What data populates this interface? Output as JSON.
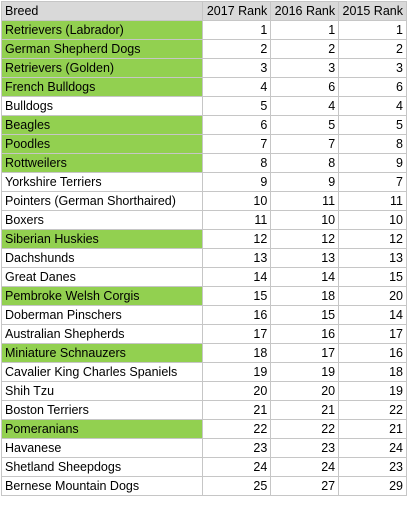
{
  "headers": [
    "Breed",
    "2017 Rank",
    "2016 Rank",
    "2015 Rank"
  ],
  "highlight_color": "#92d050",
  "rows": [
    {
      "breed": "Retrievers (Labrador)",
      "r2017": 1,
      "r2016": 1,
      "r2015": 1,
      "highlighted": true
    },
    {
      "breed": "German Shepherd Dogs",
      "r2017": 2,
      "r2016": 2,
      "r2015": 2,
      "highlighted": true
    },
    {
      "breed": "Retrievers (Golden)",
      "r2017": 3,
      "r2016": 3,
      "r2015": 3,
      "highlighted": true
    },
    {
      "breed": "French Bulldogs",
      "r2017": 4,
      "r2016": 6,
      "r2015": 6,
      "highlighted": true
    },
    {
      "breed": "Bulldogs",
      "r2017": 5,
      "r2016": 4,
      "r2015": 4,
      "highlighted": false
    },
    {
      "breed": "Beagles",
      "r2017": 6,
      "r2016": 5,
      "r2015": 5,
      "highlighted": true
    },
    {
      "breed": "Poodles",
      "r2017": 7,
      "r2016": 7,
      "r2015": 8,
      "highlighted": true
    },
    {
      "breed": "Rottweilers",
      "r2017": 8,
      "r2016": 8,
      "r2015": 9,
      "highlighted": true
    },
    {
      "breed": "Yorkshire Terriers",
      "r2017": 9,
      "r2016": 9,
      "r2015": 7,
      "highlighted": false
    },
    {
      "breed": "Pointers (German Shorthaired)",
      "r2017": 10,
      "r2016": 11,
      "r2015": 11,
      "highlighted": false
    },
    {
      "breed": "Boxers",
      "r2017": 11,
      "r2016": 10,
      "r2015": 10,
      "highlighted": false
    },
    {
      "breed": "Siberian Huskies",
      "r2017": 12,
      "r2016": 12,
      "r2015": 12,
      "highlighted": true
    },
    {
      "breed": "Dachshunds",
      "r2017": 13,
      "r2016": 13,
      "r2015": 13,
      "highlighted": false
    },
    {
      "breed": "Great Danes",
      "r2017": 14,
      "r2016": 14,
      "r2015": 15,
      "highlighted": false
    },
    {
      "breed": "Pembroke Welsh Corgis",
      "r2017": 15,
      "r2016": 18,
      "r2015": 20,
      "highlighted": true
    },
    {
      "breed": "Doberman Pinschers",
      "r2017": 16,
      "r2016": 15,
      "r2015": 14,
      "highlighted": false
    },
    {
      "breed": "Australian Shepherds",
      "r2017": 17,
      "r2016": 16,
      "r2015": 17,
      "highlighted": false
    },
    {
      "breed": "Miniature Schnauzers",
      "r2017": 18,
      "r2016": 17,
      "r2015": 16,
      "highlighted": true
    },
    {
      "breed": "Cavalier King Charles Spaniels",
      "r2017": 19,
      "r2016": 19,
      "r2015": 18,
      "highlighted": false
    },
    {
      "breed": "Shih Tzu",
      "r2017": 20,
      "r2016": 20,
      "r2015": 19,
      "highlighted": false
    },
    {
      "breed": "Boston Terriers",
      "r2017": 21,
      "r2016": 21,
      "r2015": 22,
      "highlighted": false
    },
    {
      "breed": "Pomeranians",
      "r2017": 22,
      "r2016": 22,
      "r2015": 21,
      "highlighted": true
    },
    {
      "breed": "Havanese",
      "r2017": 23,
      "r2016": 23,
      "r2015": 24,
      "highlighted": false
    },
    {
      "breed": "Shetland Sheepdogs",
      "r2017": 24,
      "r2016": 24,
      "r2015": 23,
      "highlighted": false
    },
    {
      "breed": "Bernese Mountain Dogs",
      "r2017": 25,
      "r2016": 27,
      "r2015": 29,
      "highlighted": false
    }
  ]
}
